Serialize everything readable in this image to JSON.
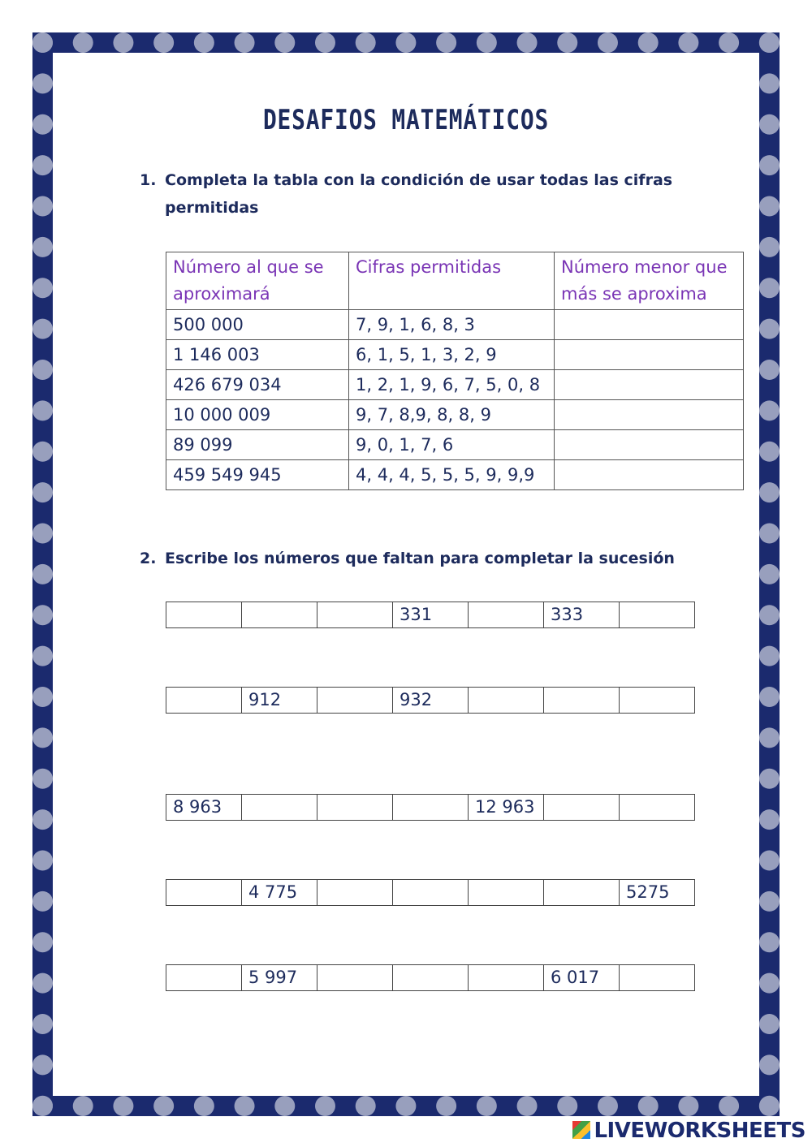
{
  "title": "DESAFIOS MATEMÁTICOS",
  "q1": {
    "number": "1.",
    "text": "Completa la tabla con la condición de usar todas las cifras permitidas"
  },
  "table": {
    "headers": [
      "Número al que se aproximará",
      "Cifras permitidas",
      "Número menor que más se aproxima"
    ],
    "rows": [
      [
        "500 000",
        "7, 9, 1, 6, 8, 3",
        ""
      ],
      [
        "1  146 003",
        "6, 1, 5, 1, 3, 2, 9",
        ""
      ],
      [
        "426 679 034",
        "1, 2, 1, 9, 6, 7, 5, 0, 8",
        ""
      ],
      [
        "10 000 009",
        "9, 7, 8,9, 8, 8, 9",
        ""
      ],
      [
        "89 099",
        "9, 0, 1, 7, 6",
        ""
      ],
      [
        "459 549 945",
        "4, 4, 4, 5, 5, 5, 9, 9,9",
        ""
      ]
    ]
  },
  "q2": {
    "number": "2.",
    "text": "Escribe los números que faltan para completar la sucesión"
  },
  "sequences": [
    [
      "",
      "",
      "",
      "331",
      "",
      "333",
      ""
    ],
    [
      "",
      "912",
      "",
      "932",
      "",
      "",
      ""
    ],
    [
      "8 963",
      "",
      "",
      "",
      "12 963",
      "",
      ""
    ],
    [
      "",
      "4 775",
      "",
      "",
      "",
      "",
      "5275"
    ],
    [
      "",
      "5 997",
      "",
      "",
      "",
      "6 017",
      ""
    ]
  ],
  "logo": "LIVEWORKSHEETS",
  "colors": {
    "frame": "#1b2a6e",
    "header": "#7a35b5",
    "text": "#1d2b5c"
  }
}
